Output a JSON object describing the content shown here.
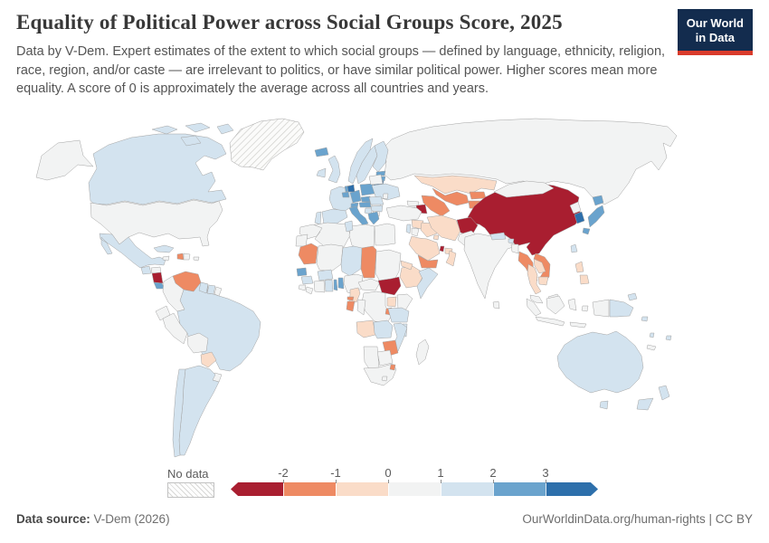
{
  "header": {
    "title": "Equality of Political Power across Social Groups Score, 2025",
    "subtitle": "Data by V-Dem. Expert estimates of the extent to which social groups — defined by language, ethnicity, religion, race, region, and/or caste — are irrelevant to politics, or have similar political power. Higher scores mean more equality. A score of 0 is approximately the average across all countries and years.",
    "logo": {
      "line1": "Our World",
      "line2": "in Data",
      "bg_color": "#132c4e",
      "accent_color": "#d93b2b"
    }
  },
  "chart_data": {
    "type": "choropleth",
    "title": "Equality of Political Power across Social Groups Score, 2025",
    "year": "2025",
    "legend": {
      "no_data_label": "No data",
      "ticks": [
        "-2",
        "-1",
        "0",
        "1",
        "2",
        "3"
      ],
      "position": "bottom"
    },
    "bins": [
      {
        "key": "b1",
        "range": "< -2",
        "color": "#a91e30"
      },
      {
        "key": "b2",
        "range": "-2 to -1",
        "color": "#ee8a63"
      },
      {
        "key": "b3",
        "range": "-1 to 0",
        "color": "#fadcc8"
      },
      {
        "key": "b4",
        "range": "0 to 1",
        "color": "#f2f3f3"
      },
      {
        "key": "b5",
        "range": "1 to 2",
        "color": "#d3e3ef"
      },
      {
        "key": "b6",
        "range": "2 to 3",
        "color": "#6aa3cd"
      },
      {
        "key": "b7",
        "range": "> 3",
        "color": "#2d6fab"
      },
      {
        "key": "no_data",
        "range": "No data",
        "color": "hatch"
      }
    ],
    "countries": {
      "greenland": "no_data",
      "china": "b1",
      "afghanistan": "b1",
      "azerbaijan": "b1",
      "south-sudan": "b1",
      "nicaragua": "b1",
      "qatar": "b1",
      "venezuela": "b2",
      "haiti": "b2",
      "mauritania": "b2",
      "chad": "b2",
      "zimbabwe": "b2",
      "eswatini": "b2",
      "gabon": "b2",
      "equatorial-guinea": "b2",
      "rwanda-burundi": "b2",
      "yemen": "b2",
      "uzbekistan": "b2",
      "turkmenistan": "b2",
      "kyrgyzstan": "b2",
      "tajikistan": "b2",
      "myanmar": "b2",
      "vietnam": "b2",
      "kazakhstan": "b3",
      "iran": "b3",
      "iraq": "b3",
      "syria": "b3",
      "saudi-arabia": "b3",
      "oman": "b3",
      "uae": "b3",
      "kuwait": "b3",
      "eritrea": "b3",
      "ethiopia": "b3",
      "cameroon": "b3",
      "angola": "b3",
      "uganda": "b3",
      "paraguay": "b3",
      "thailand": "b3",
      "laos": "b3",
      "cambodia": "b3",
      "philippines": "b3",
      "united-states": "b4",
      "russia": "b4",
      "mongolia": "b4",
      "north-korea": "b4",
      "india": "b4",
      "bangladesh": "b4",
      "sri-lanka": "b4",
      "pakistan": "b4",
      "indonesia": "b4",
      "malaysia": "b4",
      "turkey": "b4",
      "georgia": "b4",
      "armenia": "b4",
      "jordan": "b4",
      "egypt": "b4",
      "libya": "b4",
      "algeria": "b4",
      "morocco": "b4",
      "western-sahara": "b4",
      "mali": "b4",
      "sudan": "b4",
      "nigeria": "b4",
      "central-african-republic": "b4",
      "dr-congo": "b4",
      "congo": "b4",
      "kenya": "b4",
      "botswana": "b4",
      "namibia": "b4",
      "south-africa": "b4",
      "lesotho": "b4",
      "madagascar": "b4",
      "ivory-coast": "b4",
      "sierra-leone": "b4",
      "liberia": "b4",
      "colombia": "b4",
      "ecuador": "b4",
      "peru": "b4",
      "bolivia": "b4",
      "uruguay": "b4",
      "french-guiana": "b4",
      "panama": "b4",
      "dominican-republic": "b4",
      "jamaica": "b4",
      "puerto-rico": "b4",
      "belarus": "b4",
      "moldova": "b4",
      "hungary": "b4",
      "serbia": "b4",
      "honduras": "b4",
      "new-caledonia": "b4",
      "canada": "b5",
      "mexico": "b5",
      "cuba": "b5",
      "guatemala": "b5",
      "brazil": "b5",
      "argentina": "b5",
      "chile": "b5",
      "guyana": "b5",
      "suriname": "b5",
      "united-kingdom": "b5",
      "ireland": "b5",
      "france": "b5",
      "spain": "b5",
      "portugal": "b5",
      "norway": "b5",
      "sweden": "b5",
      "finland": "b5",
      "ukraine": "b5",
      "romania": "b5",
      "bulgaria": "b5",
      "croatia": "b5",
      "tunisia": "b5",
      "niger": "b5",
      "ghana": "b5",
      "burkina-faso": "b5",
      "guinea": "b5",
      "somalia": "b5",
      "tanzania": "b5",
      "zambia": "b5",
      "malawi": "b5",
      "mozambique": "b5",
      "nepal": "b5",
      "bhutan": "b5",
      "taiwan": "b5",
      "australia": "b5",
      "new-zealand": "b5",
      "papua-new-guinea": "b5",
      "solomon-islands": "b5",
      "fiji": "b5",
      "vanuatu": "b5",
      "israel": "b5",
      "iceland": "b6",
      "germany": "b6",
      "poland": "b6",
      "netherlands": "b6",
      "belgium": "b6",
      "czechia": "b6",
      "austria": "b6",
      "switzerland": "b6",
      "italy": "b6",
      "greece": "b6",
      "estonia": "b6",
      "latvia": "b6",
      "japan": "b6",
      "senegal": "b6",
      "benin": "b6",
      "togo": "b6",
      "costa-rica": "b6",
      "denmark": "b7",
      "lithuania": "b7",
      "south-korea": "b7"
    }
  },
  "footer": {
    "source_label": "Data source:",
    "source_value": " V-Dem (2026)",
    "credit": "OurWorldinData.org/human-rights | CC BY"
  }
}
